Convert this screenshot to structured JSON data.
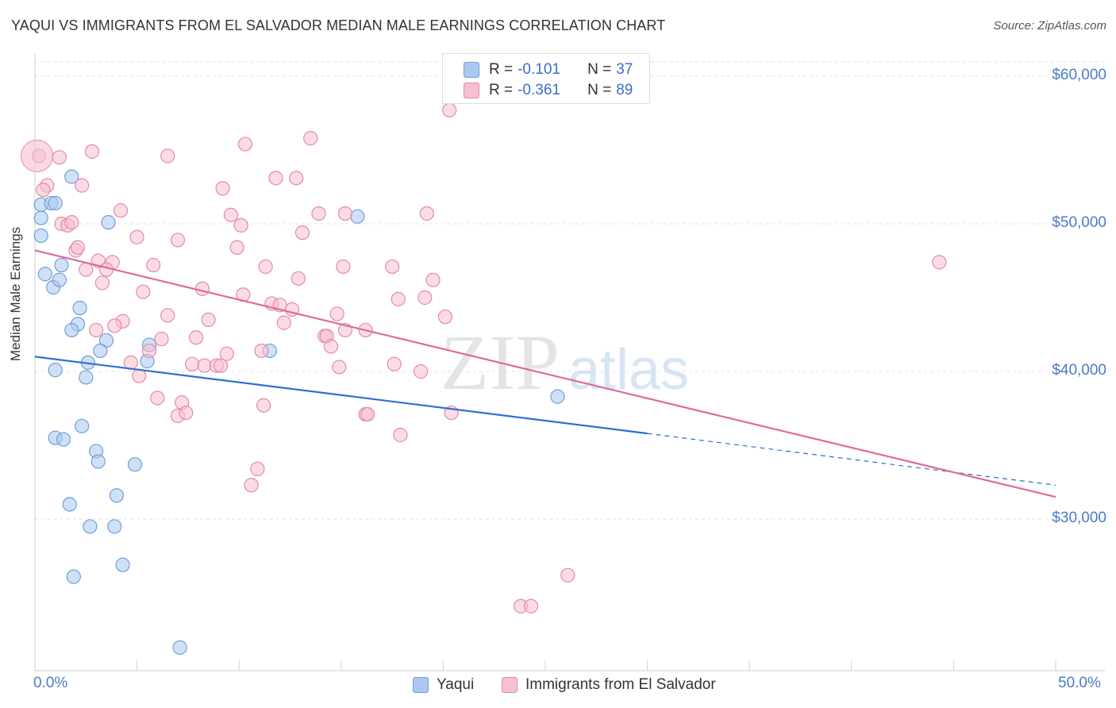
{
  "title": "YAQUI VS IMMIGRANTS FROM EL SALVADOR MEDIAN MALE EARNINGS CORRELATION CHART",
  "source": "Source: ZipAtlas.com",
  "watermark": {
    "zip": "ZIP",
    "atlas": "atlas"
  },
  "legend_top": {
    "rows": [
      {
        "r_label": "R =",
        "r_value": "-0.101",
        "n_label": "N =",
        "n_value": "37",
        "color": "#aac8f0",
        "border": "#6f9fd8"
      },
      {
        "r_label": "R =",
        "r_value": "-0.361",
        "n_label": "N =",
        "n_value": "89",
        "color": "#f7bfd0",
        "border": "#e38aa8"
      }
    ]
  },
  "legend_bottom": [
    {
      "label": "Yaqui",
      "color": "#aac8f0",
      "border": "#6f9fd8"
    },
    {
      "label": "Immigrants from El Salvador",
      "color": "#f7bfd0",
      "border": "#e38aa8"
    }
  ],
  "chart_data": {
    "type": "scatter",
    "title": "YAQUI VS IMMIGRANTS FROM EL SALVADOR MEDIAN MALE EARNINGS CORRELATION CHART",
    "xlabel": "",
    "ylabel": "Median Male Earnings",
    "xlim": [
      0,
      50
    ],
    "ylim": [
      20000,
      62000
    ],
    "x_tick_labels": [
      "0.0%",
      "50.0%"
    ],
    "y_ticks": [
      {
        "value": 30000,
        "label": "$30,000"
      },
      {
        "value": 40000,
        "label": "$40,000"
      },
      {
        "value": 50000,
        "label": "$50,000"
      },
      {
        "value": 60000,
        "label": "$60,000"
      }
    ],
    "series": [
      {
        "name": "Yaqui",
        "color": "#aac8f0",
        "stroke": "#6f9fd8",
        "line_color": "#2f6fd1",
        "trend": {
          "x0": 0,
          "y0": 41000,
          "x1": 30,
          "y1": 35800,
          "dash_to_x": 50,
          "dash_to_y": 32300
        },
        "points": [
          [
            0.3,
            51300
          ],
          [
            0.8,
            51400
          ],
          [
            0.3,
            50400
          ],
          [
            0.3,
            49200
          ],
          [
            1.8,
            53200
          ],
          [
            3.6,
            50100
          ],
          [
            15.8,
            50500
          ],
          [
            0.5,
            46600
          ],
          [
            1.3,
            47200
          ],
          [
            0.9,
            45700
          ],
          [
            1.2,
            46200
          ],
          [
            2.2,
            44300
          ],
          [
            2.1,
            43200
          ],
          [
            1.8,
            42800
          ],
          [
            3.5,
            42100
          ],
          [
            5.6,
            41800
          ],
          [
            3.2,
            41400
          ],
          [
            11.5,
            41400
          ],
          [
            2.6,
            40600
          ],
          [
            5.5,
            40700
          ],
          [
            1.0,
            40100
          ],
          [
            2.5,
            39600
          ],
          [
            25.6,
            38300
          ],
          [
            2.3,
            36300
          ],
          [
            1.0,
            35500
          ],
          [
            1.4,
            35400
          ],
          [
            3.0,
            34600
          ],
          [
            3.1,
            33900
          ],
          [
            4.9,
            33700
          ],
          [
            4.0,
            31600
          ],
          [
            1.7,
            31000
          ],
          [
            2.7,
            29500
          ],
          [
            3.9,
            29500
          ],
          [
            4.3,
            26900
          ],
          [
            1.9,
            26100
          ],
          [
            7.1,
            21300
          ],
          [
            1.0,
            51400
          ]
        ]
      },
      {
        "name": "Immigrants from El Salvador",
        "color": "#f7bfd0",
        "stroke": "#e38aa8",
        "line_color": "#e06a96",
        "trend": {
          "x0": 0,
          "y0": 48200,
          "x1": 50,
          "y1": 31500
        },
        "points": [
          [
            0.2,
            54600
          ],
          [
            1.2,
            54500
          ],
          [
            2.8,
            54900
          ],
          [
            6.5,
            54600
          ],
          [
            10.3,
            55400
          ],
          [
            13.5,
            55800
          ],
          [
            20.3,
            57700
          ],
          [
            0.6,
            52600
          ],
          [
            0.4,
            52300
          ],
          [
            2.3,
            52600
          ],
          [
            9.2,
            52400
          ],
          [
            11.8,
            53100
          ],
          [
            12.8,
            53100
          ],
          [
            4.2,
            50900
          ],
          [
            9.6,
            50600
          ],
          [
            13.9,
            50700
          ],
          [
            15.2,
            50700
          ],
          [
            19.2,
            50700
          ],
          [
            1.3,
            50000
          ],
          [
            1.6,
            49900
          ],
          [
            1.8,
            50100
          ],
          [
            10.1,
            49900
          ],
          [
            13.1,
            49400
          ],
          [
            5.0,
            49100
          ],
          [
            7.0,
            48900
          ],
          [
            2.0,
            48200
          ],
          [
            2.1,
            48400
          ],
          [
            9.9,
            48400
          ],
          [
            3.1,
            47500
          ],
          [
            3.8,
            47400
          ],
          [
            5.8,
            47200
          ],
          [
            11.3,
            47100
          ],
          [
            15.1,
            47100
          ],
          [
            17.5,
            47100
          ],
          [
            2.5,
            46900
          ],
          [
            3.5,
            46900
          ],
          [
            3.3,
            46000
          ],
          [
            12.9,
            46300
          ],
          [
            19.5,
            46200
          ],
          [
            44.3,
            47400
          ],
          [
            5.3,
            45400
          ],
          [
            8.2,
            45600
          ],
          [
            10.2,
            45200
          ],
          [
            11.6,
            44600
          ],
          [
            12.0,
            44500
          ],
          [
            12.6,
            44200
          ],
          [
            17.8,
            44900
          ],
          [
            19.1,
            45000
          ],
          [
            6.5,
            43800
          ],
          [
            8.5,
            43500
          ],
          [
            14.8,
            43900
          ],
          [
            4.3,
            43400
          ],
          [
            12.2,
            43300
          ],
          [
            20.1,
            43700
          ],
          [
            16.2,
            42800
          ],
          [
            3.0,
            42800
          ],
          [
            3.9,
            43100
          ],
          [
            6.2,
            42200
          ],
          [
            7.9,
            42300
          ],
          [
            14.2,
            42400
          ],
          [
            14.3,
            42400
          ],
          [
            14.5,
            41700
          ],
          [
            11.1,
            41400
          ],
          [
            9.4,
            41200
          ],
          [
            4.7,
            40600
          ],
          [
            5.6,
            41400
          ],
          [
            7.7,
            40500
          ],
          [
            8.3,
            40400
          ],
          [
            8.9,
            40400
          ],
          [
            9.1,
            40400
          ],
          [
            14.9,
            40300
          ],
          [
            17.6,
            40500
          ],
          [
            18.9,
            40000
          ],
          [
            5.1,
            39700
          ],
          [
            6.0,
            38200
          ],
          [
            7.2,
            37900
          ],
          [
            7.0,
            37000
          ],
          [
            7.4,
            37200
          ],
          [
            11.2,
            37700
          ],
          [
            16.2,
            37100
          ],
          [
            16.3,
            37100
          ],
          [
            20.4,
            37200
          ],
          [
            17.9,
            35700
          ],
          [
            10.9,
            33400
          ],
          [
            10.6,
            32300
          ],
          [
            26.1,
            26200
          ],
          [
            23.8,
            24100
          ],
          [
            24.3,
            24100
          ],
          [
            15.2,
            42800
          ]
        ]
      }
    ]
  }
}
